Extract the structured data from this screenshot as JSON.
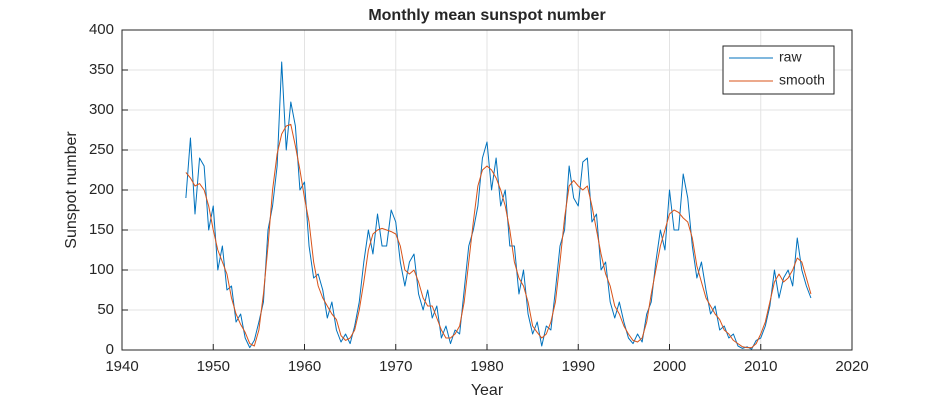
{
  "chart_data": {
    "type": "line",
    "title": "Monthly mean sunspot number",
    "xlabel": "Year",
    "ylabel": "Sunspot number",
    "xlim": [
      1940,
      2020
    ],
    "xticks": [
      1940,
      1950,
      1960,
      1970,
      1980,
      1990,
      2000,
      2010,
      2020
    ],
    "ylim": [
      0,
      400
    ],
    "yticks": [
      0,
      50,
      100,
      150,
      200,
      250,
      300,
      350,
      400
    ],
    "grid": true,
    "legend": "northeast",
    "x": [
      1947,
      1947.5,
      1948,
      1948.5,
      1949,
      1949.5,
      1950,
      1950.5,
      1951,
      1951.5,
      1952,
      1952.5,
      1953,
      1953.5,
      1954,
      1954.5,
      1955,
      1955.5,
      1956,
      1956.5,
      1957,
      1957.5,
      1958,
      1958.5,
      1959,
      1959.5,
      1960,
      1960.5,
      1961,
      1961.5,
      1962,
      1962.5,
      1963,
      1963.5,
      1964,
      1964.5,
      1965,
      1965.5,
      1966,
      1966.5,
      1967,
      1967.5,
      1968,
      1968.5,
      1969,
      1969.5,
      1970,
      1970.5,
      1971,
      1971.5,
      1972,
      1972.5,
      1973,
      1973.5,
      1974,
      1974.5,
      1975,
      1975.5,
      1976,
      1976.5,
      1977,
      1977.5,
      1978,
      1978.5,
      1979,
      1979.5,
      1980,
      1980.5,
      1981,
      1981.5,
      1982,
      1982.5,
      1983,
      1983.5,
      1984,
      1984.5,
      1985,
      1985.5,
      1986,
      1986.5,
      1987,
      1987.5,
      1988,
      1988.5,
      1989,
      1989.5,
      1990,
      1990.5,
      1991,
      1991.5,
      1992,
      1992.5,
      1993,
      1993.5,
      1994,
      1994.5,
      1995,
      1995.5,
      1996,
      1996.5,
      1997,
      1997.5,
      1998,
      1998.5,
      1999,
      1999.5,
      2000,
      2000.5,
      2001,
      2001.5,
      2002,
      2002.5,
      2003,
      2003.5,
      2004,
      2004.5,
      2005,
      2005.5,
      2006,
      2006.5,
      2007,
      2007.5,
      2008,
      2008.5,
      2009,
      2009.5,
      2010,
      2010.5,
      2011,
      2011.5,
      2012,
      2012.5,
      2013,
      2013.5,
      2014,
      2014.5,
      2015,
      2015.5
    ],
    "series": [
      {
        "name": "raw",
        "color": "#0072BD",
        "values": [
          190,
          265,
          170,
          240,
          230,
          150,
          180,
          100,
          130,
          75,
          80,
          35,
          45,
          15,
          3,
          12,
          35,
          60,
          150,
          180,
          230,
          360,
          250,
          310,
          280,
          200,
          210,
          130,
          90,
          95,
          75,
          40,
          60,
          25,
          10,
          20,
          8,
          30,
          60,
          110,
          150,
          120,
          170,
          130,
          130,
          175,
          160,
          110,
          80,
          110,
          120,
          70,
          50,
          75,
          40,
          55,
          15,
          30,
          8,
          25,
          20,
          75,
          130,
          150,
          180,
          240,
          260,
          200,
          240,
          180,
          200,
          130,
          130,
          70,
          100,
          45,
          20,
          35,
          5,
          30,
          25,
          75,
          130,
          150,
          230,
          190,
          180,
          235,
          240,
          160,
          170,
          100,
          110,
          60,
          40,
          60,
          35,
          15,
          8,
          20,
          10,
          45,
          60,
          110,
          150,
          125,
          200,
          150,
          150,
          220,
          190,
          130,
          90,
          110,
          75,
          45,
          55,
          25,
          30,
          15,
          20,
          5,
          2,
          4,
          1,
          12,
          15,
          30,
          55,
          100,
          65,
          90,
          100,
          80,
          140,
          100,
          80,
          65
        ]
      },
      {
        "name": "smooth",
        "color": "#D95319",
        "values": [
          222,
          215,
          205,
          208,
          200,
          180,
          150,
          125,
          110,
          95,
          65,
          45,
          32,
          22,
          8,
          5,
          25,
          70,
          130,
          200,
          245,
          270,
          280,
          282,
          255,
          225,
          190,
          160,
          110,
          80,
          65,
          55,
          45,
          38,
          18,
          12,
          15,
          25,
          50,
          85,
          125,
          145,
          150,
          152,
          150,
          148,
          145,
          130,
          100,
          95,
          100,
          85,
          65,
          55,
          55,
          40,
          25,
          15,
          15,
          20,
          30,
          60,
          110,
          160,
          205,
          225,
          230,
          225,
          215,
          200,
          180,
          150,
          110,
          90,
          80,
          60,
          30,
          22,
          15,
          20,
          35,
          60,
          110,
          165,
          205,
          212,
          205,
          200,
          205,
          180,
          150,
          120,
          95,
          80,
          55,
          45,
          30,
          20,
          12,
          10,
          15,
          35,
          70,
          100,
          130,
          150,
          170,
          175,
          172,
          165,
          160,
          140,
          105,
          85,
          65,
          55,
          45,
          38,
          25,
          20,
          12,
          8,
          4,
          3,
          3,
          8,
          20,
          35,
          60,
          85,
          95,
          85,
          90,
          100,
          115,
          110,
          90,
          70
        ]
      }
    ]
  }
}
